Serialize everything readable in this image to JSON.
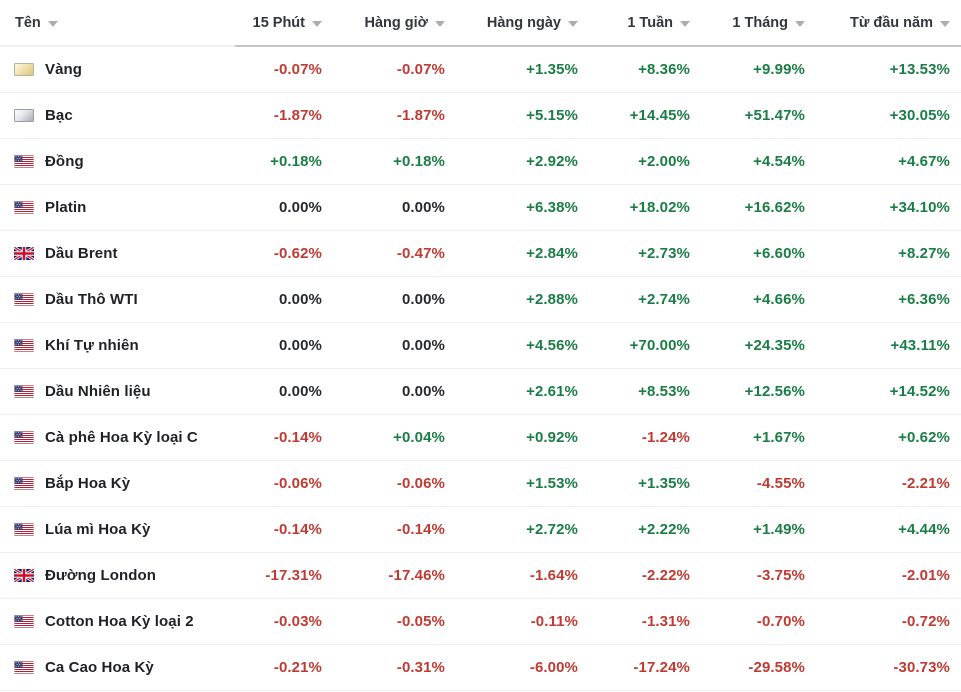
{
  "colors": {
    "positive": "#1b7d46",
    "negative": "#bf3a32",
    "neutral": "#26292e"
  },
  "table": {
    "columns": [
      {
        "id": "name",
        "label": "Tên",
        "sortable": true
      },
      {
        "id": "15min",
        "label": "15 Phút",
        "sortable": true
      },
      {
        "id": "hourly",
        "label": "Hàng giờ",
        "sortable": true
      },
      {
        "id": "daily",
        "label": "Hàng ngày",
        "sortable": true
      },
      {
        "id": "1week",
        "label": "1 Tuần",
        "sortable": true
      },
      {
        "id": "1month",
        "label": "1 Tháng",
        "sortable": true
      },
      {
        "id": "ytd",
        "label": "Từ đầu năm",
        "sortable": true
      }
    ],
    "rows": [
      {
        "name": "Vàng",
        "icon": "gold-bar",
        "values": [
          "-0.07%",
          "-0.07%",
          "+1.35%",
          "+8.36%",
          "+9.99%",
          "+13.53%"
        ]
      },
      {
        "name": "Bạc",
        "icon": "silver-bar",
        "values": [
          "-1.87%",
          "-1.87%",
          "+5.15%",
          "+14.45%",
          "+51.47%",
          "+30.05%"
        ]
      },
      {
        "name": "Đồng",
        "icon": "us-flag",
        "values": [
          "+0.18%",
          "+0.18%",
          "+2.92%",
          "+2.00%",
          "+4.54%",
          "+4.67%"
        ]
      },
      {
        "name": "Platin",
        "icon": "us-flag",
        "values": [
          "0.00%",
          "0.00%",
          "+6.38%",
          "+18.02%",
          "+16.62%",
          "+34.10%"
        ]
      },
      {
        "name": "Dầu Brent",
        "icon": "uk-flag",
        "values": [
          "-0.62%",
          "-0.47%",
          "+2.84%",
          "+2.73%",
          "+6.60%",
          "+8.27%"
        ]
      },
      {
        "name": "Dầu Thô WTI",
        "icon": "us-flag",
        "values": [
          "0.00%",
          "0.00%",
          "+2.88%",
          "+2.74%",
          "+4.66%",
          "+6.36%"
        ]
      },
      {
        "name": "Khí Tự nhiên",
        "icon": "us-flag",
        "values": [
          "0.00%",
          "0.00%",
          "+4.56%",
          "+70.00%",
          "+24.35%",
          "+43.11%"
        ]
      },
      {
        "name": "Dầu Nhiên liệu",
        "icon": "us-flag",
        "values": [
          "0.00%",
          "0.00%",
          "+2.61%",
          "+8.53%",
          "+12.56%",
          "+14.52%"
        ]
      },
      {
        "name": "Cà phê Hoa Kỳ loại C",
        "icon": "us-flag",
        "values": [
          "-0.14%",
          "+0.04%",
          "+0.92%",
          "-1.24%",
          "+1.67%",
          "+0.62%"
        ]
      },
      {
        "name": "Bắp Hoa Kỳ",
        "icon": "us-flag",
        "values": [
          "-0.06%",
          "-0.06%",
          "+1.53%",
          "+1.35%",
          "-4.55%",
          "-2.21%"
        ]
      },
      {
        "name": "Lúa mì Hoa Kỳ",
        "icon": "us-flag",
        "values": [
          "-0.14%",
          "-0.14%",
          "+2.72%",
          "+2.22%",
          "+1.49%",
          "+4.44%"
        ]
      },
      {
        "name": "Đường London",
        "icon": "uk-flag",
        "values": [
          "-17.31%",
          "-17.46%",
          "-1.64%",
          "-2.22%",
          "-3.75%",
          "-2.01%"
        ]
      },
      {
        "name": "Cotton Hoa Kỳ loại 2",
        "icon": "us-flag",
        "values": [
          "-0.03%",
          "-0.05%",
          "-0.11%",
          "-1.31%",
          "-0.70%",
          "-0.72%"
        ]
      },
      {
        "name": "Ca Cao Hoa Kỳ",
        "icon": "us-flag",
        "values": [
          "-0.21%",
          "-0.31%",
          "-6.00%",
          "-17.24%",
          "-29.58%",
          "-30.73%"
        ]
      }
    ]
  }
}
